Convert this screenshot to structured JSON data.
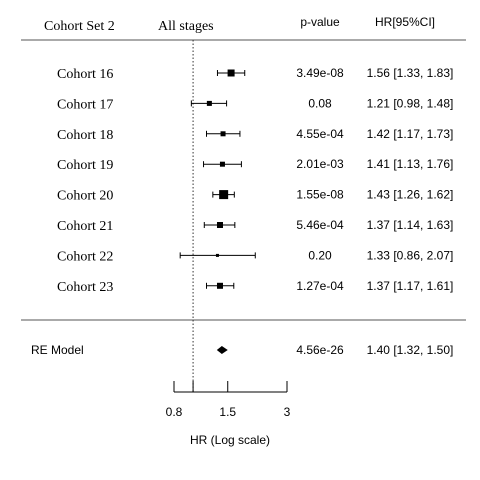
{
  "header": {
    "set_label": "Cohort Set 2",
    "stage_label": "All stages",
    "pvalue_label": "p-value",
    "hr_label": "HR[95%CI]"
  },
  "chart_data": {
    "type": "forest",
    "x_scale": "log",
    "xlabel": "HR (Log scale)",
    "xticks": [
      0.8,
      1.5,
      3
    ],
    "xtick_labels": [
      "0.8",
      "1.5",
      "3"
    ],
    "xlim": [
      0.67,
      3
    ],
    "reference_line": 1,
    "studies": [
      {
        "label": "Cohort 16",
        "hr": 1.56,
        "lo": 1.33,
        "hi": 1.83,
        "p": "3.49e-08",
        "ci_text": "1.56 [1.33, 1.83]",
        "box": 7
      },
      {
        "label": "Cohort 17",
        "hr": 1.21,
        "lo": 0.98,
        "hi": 1.48,
        "p": "0.08",
        "ci_text": "1.21 [0.98, 1.48]",
        "box": 5
      },
      {
        "label": "Cohort 18",
        "hr": 1.42,
        "lo": 1.17,
        "hi": 1.73,
        "p": "4.55e-04",
        "ci_text": "1.42 [1.17, 1.73]",
        "box": 5
      },
      {
        "label": "Cohort 19",
        "hr": 1.41,
        "lo": 1.13,
        "hi": 1.76,
        "p": "2.01e-03",
        "ci_text": "1.41 [1.13, 1.76]",
        "box": 5
      },
      {
        "label": "Cohort 20",
        "hr": 1.43,
        "lo": 1.26,
        "hi": 1.62,
        "p": "1.55e-08",
        "ci_text": "1.43 [1.26, 1.62]",
        "box": 9
      },
      {
        "label": "Cohort 21",
        "hr": 1.37,
        "lo": 1.14,
        "hi": 1.63,
        "p": "5.46e-04",
        "ci_text": "1.37 [1.14, 1.63]",
        "box": 6
      },
      {
        "label": "Cohort 22",
        "hr": 1.33,
        "lo": 0.86,
        "hi": 2.07,
        "p": "0.20",
        "ci_text": "1.33 [0.86, 2.07]",
        "box": 3
      },
      {
        "label": "Cohort 23",
        "hr": 1.37,
        "lo": 1.17,
        "hi": 1.61,
        "p": "1.27e-04",
        "ci_text": "1.37 [1.17, 1.61]",
        "box": 6
      }
    ],
    "summary": {
      "label": "RE Model",
      "hr": 1.4,
      "lo": 1.32,
      "hi": 1.5,
      "p": "4.56e-26",
      "ci_text": "1.40 [1.32, 1.50]"
    }
  }
}
